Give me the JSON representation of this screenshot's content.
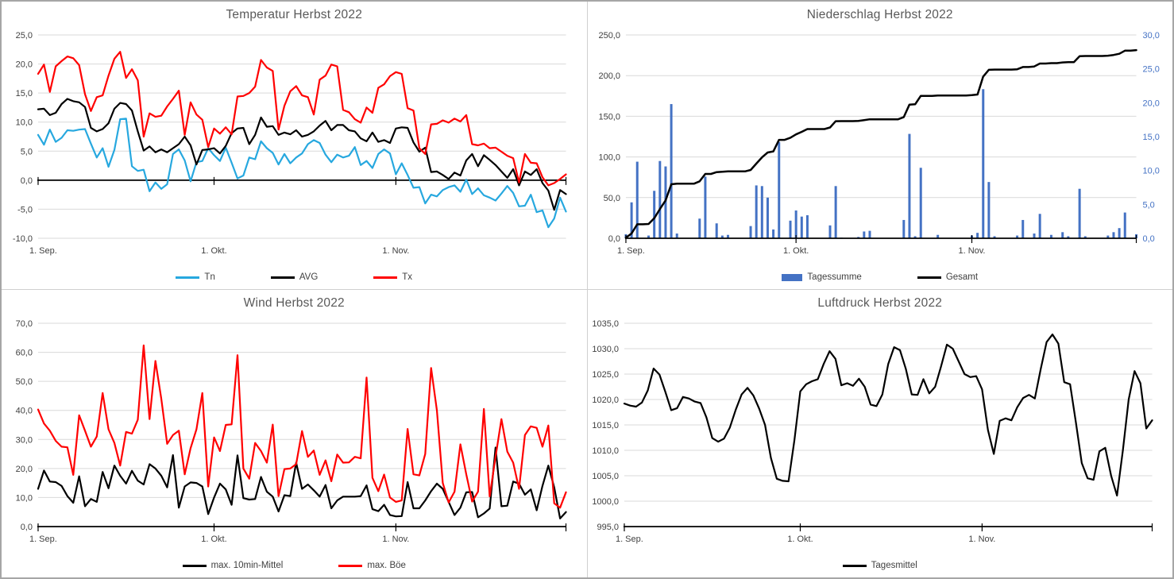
{
  "chart_data": [
    {
      "id": "temperature",
      "type": "line",
      "title": "Temperatur Herbst 2022",
      "xlabel": "",
      "ylabel": "",
      "grid": true,
      "legend_position": "bottom",
      "axis_at_zero": true,
      "x": {
        "count": 91,
        "start_label": "1. Sep.",
        "end": "30. Nov."
      },
      "x_ticks": [
        {
          "i": 0,
          "label": "1. Sep."
        },
        {
          "i": 30,
          "label": "1. Okt."
        },
        {
          "i": 61,
          "label": "1. Nov."
        }
      ],
      "y": {
        "min": -10,
        "max": 25,
        "step": 5
      },
      "series": [
        {
          "name": "Tn",
          "color": "#27A8DF",
          "values": [
            7.8,
            6.1,
            8.7,
            6.6,
            7.3,
            8.6,
            8.5,
            8.7,
            8.8,
            6.3,
            3.9,
            5.5,
            2.3,
            5.2,
            10.5,
            10.6,
            2.4,
            1.6,
            1.8,
            -1.9,
            -0.4,
            -1.5,
            -0.7,
            4.5,
            5.3,
            3.4,
            -0.2,
            3.1,
            3.3,
            5.5,
            4.3,
            3.3,
            5.6,
            3.0,
            0.3,
            0.8,
            3.9,
            3.6,
            6.7,
            5.5,
            4.7,
            2.7,
            4.5,
            2.9,
            3.9,
            4.6,
            6.2,
            6.9,
            6.4,
            4.4,
            3.1,
            4.4,
            3.9,
            4.2,
            5.7,
            2.6,
            3.3,
            2.1,
            4.5,
            5.3,
            4.6,
            1.0,
            2.9,
            0.9,
            -1.3,
            -1.2,
            -4.0,
            -2.5,
            -2.8,
            -1.7,
            -1.2,
            -0.9,
            -2.0,
            0.1,
            -2.4,
            -1.4,
            -2.6,
            -3.0,
            -3.5,
            -2.3,
            -1.0,
            -2.2,
            -4.5,
            -4.4,
            -2.5,
            -5.5,
            -5.2,
            -8.1,
            -6.6,
            -3.0,
            -5.4
          ]
        },
        {
          "name": "AVG",
          "color": "#000000",
          "values": [
            12.2,
            12.3,
            11.2,
            11.6,
            13.1,
            14.0,
            13.6,
            13.4,
            12.6,
            9.0,
            8.4,
            8.8,
            9.8,
            12.3,
            13.3,
            13.1,
            12.0,
            8.4,
            5.1,
            5.8,
            4.8,
            5.3,
            4.8,
            5.5,
            6.2,
            7.5,
            6.0,
            2.7,
            5.2,
            5.3,
            5.5,
            4.6,
            5.9,
            8.1,
            8.9,
            9.0,
            6.2,
            7.8,
            10.8,
            9.2,
            9.3,
            7.8,
            8.2,
            7.9,
            8.6,
            7.5,
            7.8,
            8.4,
            9.4,
            10.2,
            8.6,
            9.5,
            9.5,
            8.6,
            8.4,
            7.2,
            6.7,
            8.2,
            6.6,
            6.9,
            6.4,
            8.9,
            9.1,
            9.0,
            6.5,
            4.9,
            5.6,
            1.4,
            1.5,
            0.9,
            0.2,
            1.3,
            0.8,
            3.4,
            4.5,
            2.4,
            4.3,
            3.5,
            2.6,
            1.5,
            0.4,
            1.9,
            -0.9,
            1.5,
            0.9,
            1.9,
            -0.5,
            -1.8,
            -5.1,
            -1.7,
            -2.4
          ]
        },
        {
          "name": "Tx",
          "color": "#FF0000",
          "values": [
            18.3,
            19.9,
            15.2,
            19.6,
            20.5,
            21.3,
            21.0,
            19.8,
            14.8,
            11.9,
            14.3,
            14.6,
            18.0,
            20.9,
            22.1,
            17.6,
            19.1,
            17.2,
            7.5,
            11.5,
            10.9,
            11.1,
            12.7,
            14.0,
            15.4,
            7.8,
            13.4,
            11.3,
            10.4,
            5.7,
            8.9,
            8.0,
            9.1,
            7.9,
            14.4,
            14.5,
            15.0,
            16.1,
            20.7,
            19.4,
            18.8,
            8.7,
            12.8,
            15.3,
            16.2,
            14.6,
            14.3,
            11.3,
            17.3,
            18.0,
            19.9,
            19.6,
            12.1,
            11.7,
            10.5,
            9.9,
            12.5,
            11.6,
            15.9,
            16.5,
            17.9,
            18.6,
            18.3,
            12.4,
            12.0,
            5.5,
            4.5,
            9.6,
            9.7,
            10.3,
            9.9,
            10.6,
            10.1,
            11.2,
            6.2,
            6.0,
            6.3,
            5.5,
            5.6,
            4.9,
            4.2,
            3.8,
            -0.4,
            4.5,
            3.0,
            2.9,
            0.5,
            -0.9,
            -0.5,
            0.2,
            1.0
          ]
        }
      ]
    },
    {
      "id": "precipitation",
      "type": "bar",
      "title": "Niederschlag Herbst 2022",
      "xlabel": "",
      "ylabel": "",
      "grid": true,
      "legend_position": "bottom",
      "axis_at_zero": false,
      "x": {
        "count": 91,
        "start_label": "1. Sep.",
        "end": "30. Nov."
      },
      "x_ticks": [
        {
          "i": 0,
          "label": "1. Sep."
        },
        {
          "i": 30,
          "label": "1. Okt."
        },
        {
          "i": 61,
          "label": "1. Nov."
        }
      ],
      "y": {
        "min": 0,
        "max": 250,
        "step": 50
      },
      "y2": {
        "min": 0,
        "max": 30,
        "step": 5,
        "color": "#4472C4"
      },
      "series": [
        {
          "name": "Tagessumme",
          "kind": "bar",
          "axis": "y2",
          "color": "#4472C4",
          "values": [
            0.6,
            5.3,
            11.3,
            0,
            0.4,
            7.0,
            11.4,
            10.6,
            19.8,
            0.7,
            0,
            0,
            0,
            2.9,
            9.1,
            0,
            2.2,
            0.4,
            0.5,
            0,
            0,
            0,
            1.8,
            7.8,
            7.7,
            6.0,
            1.3,
            14.2,
            0,
            2.6,
            4.1,
            3.2,
            3.4,
            0,
            0,
            0,
            1.9,
            7.7,
            0.1,
            0,
            0,
            0.2,
            1.0,
            1.1,
            0,
            0,
            0,
            0,
            0,
            2.7,
            15.4,
            0.3,
            10.4,
            0,
            0,
            0.5,
            0,
            0,
            0,
            0,
            0,
            0.4,
            0.8,
            22.0,
            8.3,
            0.3,
            0,
            0,
            0,
            0.4,
            2.7,
            0,
            0.7,
            3.6,
            0,
            0.5,
            0,
            0.9,
            0.3,
            0,
            7.3,
            0.3,
            0,
            0,
            0,
            0.4,
            0.9,
            1.5,
            3.8,
            0,
            0.6
          ]
        },
        {
          "name": "Gesamt",
          "kind": "line",
          "axis": "y",
          "color": "#000000",
          "width": 2.5,
          "values": [
            0.6,
            5.9,
            17.2,
            17.2,
            17.6,
            24.6,
            36.0,
            46.6,
            66.4,
            67.1,
            67.1,
            67.1,
            67.1,
            70.0,
            79.1,
            79.1,
            81.3,
            81.7,
            82.2,
            82.2,
            82.2,
            82.2,
            84.0,
            91.8,
            99.5,
            105.5,
            106.8,
            121.0,
            121.0,
            123.6,
            127.7,
            130.9,
            134.3,
            134.3,
            134.3,
            134.3,
            136.2,
            143.9,
            144.0,
            144.0,
            144.0,
            144.2,
            145.2,
            146.3,
            146.3,
            146.3,
            146.3,
            146.3,
            146.3,
            149.0,
            164.4,
            164.7,
            175.1,
            175.1,
            175.1,
            175.6,
            175.6,
            175.6,
            175.6,
            175.6,
            175.6,
            176.0,
            176.8,
            198.8,
            207.1,
            207.4,
            207.4,
            207.4,
            207.4,
            207.8,
            210.5,
            210.5,
            211.2,
            214.8,
            214.8,
            215.3,
            215.3,
            216.2,
            216.5,
            216.5,
            223.8,
            224.1,
            224.1,
            224.1,
            224.1,
            224.5,
            225.4,
            226.9,
            230.7,
            230.7,
            231.3
          ]
        }
      ]
    },
    {
      "id": "wind",
      "type": "line",
      "title": "Wind Herbst 2022",
      "xlabel": "",
      "ylabel": "",
      "grid": true,
      "legend_position": "bottom",
      "axis_at_zero": false,
      "x": {
        "count": 91,
        "start_label": "1. Sep.",
        "end": "30. Nov."
      },
      "x_ticks": [
        {
          "i": 0,
          "label": "1. Sep."
        },
        {
          "i": 30,
          "label": "1. Okt."
        },
        {
          "i": 61,
          "label": "1. Nov."
        }
      ],
      "y": {
        "min": 0,
        "max": 70,
        "step": 10
      },
      "series": [
        {
          "name": "max. 10min-Mittel",
          "color": "#000000",
          "values": [
            13.0,
            19.3,
            15.5,
            15.3,
            14.0,
            10.5,
            8.2,
            17.3,
            7.0,
            9.5,
            8.5,
            18.8,
            13.2,
            21.0,
            17.5,
            14.8,
            19.2,
            15.8,
            14.5,
            21.5,
            20.0,
            17.5,
            13.5,
            24.6,
            6.5,
            13.8,
            15.2,
            15.0,
            13.8,
            4.3,
            10.0,
            14.8,
            12.8,
            7.5,
            24.5,
            9.8,
            9.3,
            9.5,
            17.1,
            12.0,
            10.3,
            5.2,
            10.8,
            10.5,
            22.0,
            13.0,
            14.5,
            12.5,
            10.3,
            14.3,
            6.3,
            9.0,
            10.3,
            10.3,
            10.3,
            10.5,
            14.2,
            6.0,
            5.3,
            7.5,
            4.0,
            3.5,
            3.6,
            15.3,
            6.3,
            6.3,
            9.0,
            12.2,
            14.8,
            13.0,
            8.5,
            4.0,
            6.5,
            11.8,
            11.9,
            3.2,
            4.5,
            6.2,
            27.2,
            7.0,
            7.2,
            15.5,
            14.8,
            11.0,
            12.8,
            5.6,
            14.0,
            21.0,
            13.5,
            2.8,
            5.0
          ]
        },
        {
          "name": "max. Böe",
          "color": "#FF0000",
          "values": [
            40.3,
            35.5,
            33.0,
            29.5,
            27.5,
            27.3,
            17.8,
            38.3,
            33.0,
            27.5,
            31.0,
            46.0,
            33.5,
            28.8,
            21.0,
            32.6,
            32.0,
            36.8,
            62.4,
            37.0,
            57.0,
            44.0,
            28.5,
            31.5,
            33.0,
            18.0,
            27.0,
            33.5,
            46.0,
            13.8,
            30.7,
            26.0,
            35.0,
            35.2,
            59.0,
            20.0,
            16.5,
            28.8,
            26.0,
            22.0,
            35.1,
            10.5,
            19.8,
            20.0,
            21.5,
            32.9,
            24.0,
            26.2,
            17.8,
            22.8,
            15.6,
            24.8,
            22.0,
            22.1,
            24.0,
            23.5,
            51.3,
            16.8,
            12.2,
            17.9,
            10.0,
            8.5,
            9.0,
            33.6,
            18.0,
            17.6,
            25.0,
            54.6,
            40.0,
            15.0,
            8.3,
            12.0,
            28.3,
            18.0,
            8.6,
            12.0,
            40.5,
            10.4,
            24.0,
            37.0,
            25.8,
            22.0,
            13.0,
            31.5,
            34.5,
            34.0,
            27.5,
            34.8,
            8.0,
            6.5,
            11.8
          ]
        }
      ]
    },
    {
      "id": "pressure",
      "type": "line",
      "title": "Luftdruck Herbst 2022",
      "xlabel": "",
      "ylabel": "",
      "grid": true,
      "legend_position": "bottom",
      "axis_at_zero": false,
      "x": {
        "count": 91,
        "start_label": "1. Sep.",
        "end": "30. Nov."
      },
      "x_ticks": [
        {
          "i": 0,
          "label": "1. Sep."
        },
        {
          "i": 30,
          "label": "1. Okt."
        },
        {
          "i": 61,
          "label": "1. Nov."
        }
      ],
      "y": {
        "min": 995,
        "max": 1035,
        "step": 5
      },
      "series": [
        {
          "name": "Tagesmittel",
          "color": "#000000",
          "values": [
            1019.2,
            1018.8,
            1018.6,
            1019.4,
            1021.8,
            1026.1,
            1024.9,
            1021.5,
            1017.9,
            1018.3,
            1020.5,
            1020.2,
            1019.6,
            1019.3,
            1016.5,
            1012.4,
            1011.7,
            1012.3,
            1014.5,
            1018.0,
            1021.0,
            1022.3,
            1020.8,
            1018.2,
            1015.0,
            1008.5,
            1004.4,
            1004.0,
            1003.9,
            1012.0,
            1021.6,
            1023.0,
            1023.6,
            1024.0,
            1027.0,
            1029.5,
            1028.0,
            1022.8,
            1023.2,
            1022.7,
            1024.1,
            1022.5,
            1019.0,
            1018.7,
            1021.0,
            1027.0,
            1030.3,
            1029.7,
            1026.0,
            1021.0,
            1020.9,
            1024.0,
            1021.2,
            1022.5,
            1026.5,
            1030.8,
            1030.0,
            1027.5,
            1025.0,
            1024.4,
            1024.6,
            1022.0,
            1014.0,
            1009.3,
            1015.8,
            1016.3,
            1015.9,
            1018.5,
            1020.3,
            1020.9,
            1020.2,
            1026.0,
            1031.3,
            1032.8,
            1031.0,
            1023.4,
            1023.0,
            1015.5,
            1007.5,
            1004.5,
            1004.2,
            1009.8,
            1010.5,
            1005.0,
            1001.1,
            1010.0,
            1020.0,
            1025.6,
            1023.2,
            1014.3,
            1015.9
          ]
        }
      ]
    }
  ],
  "style": {
    "gridline_color": "#D9D9D9",
    "axis_color": "#000000",
    "tick_label_color": "#404040",
    "title_color": "#595959",
    "secondary_axis_label_color": "#4472C4",
    "bar_color": "#4472C4"
  }
}
